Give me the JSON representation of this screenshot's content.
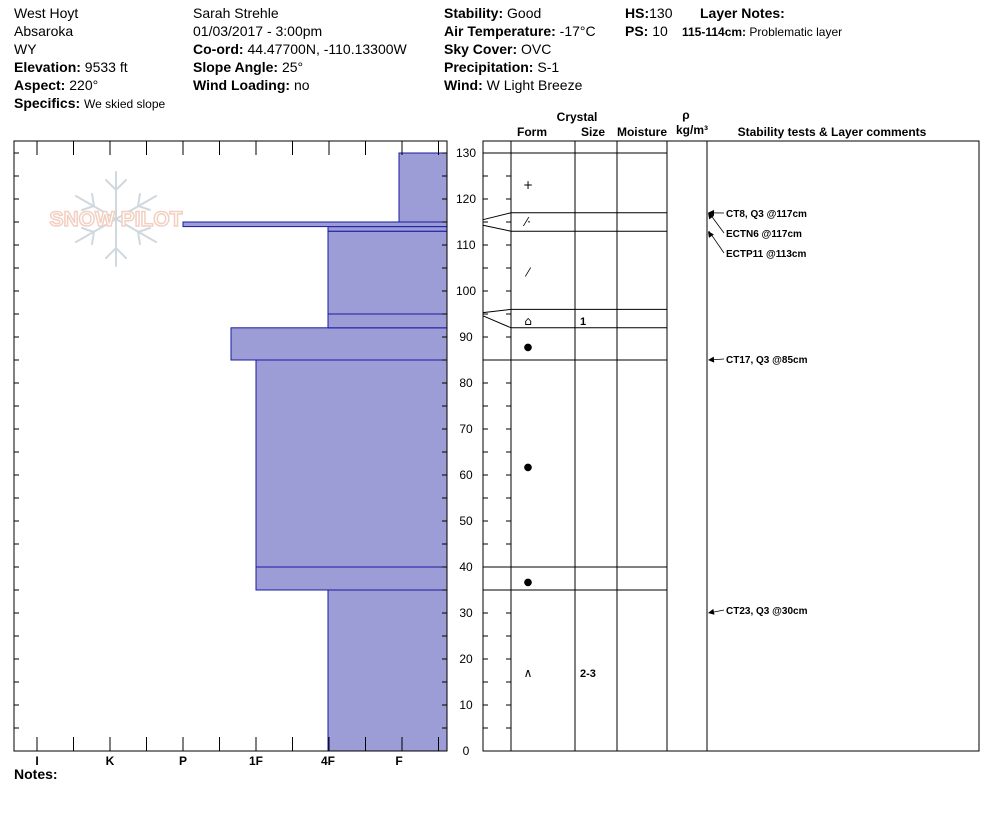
{
  "header": {
    "location": "West Hoyt",
    "range": "Absaroka",
    "state": "WY",
    "elevation_label": "Elevation:",
    "elevation": "9533 ft",
    "aspect_label": "Aspect:",
    "aspect": "220°",
    "specifics_label": "Specifics:",
    "specifics": "We skied slope",
    "observer": "Sarah Strehle",
    "datetime": "01/03/2017 - 3:00pm",
    "coord_label": "Co-ord:",
    "coord": "44.47700N, -110.13300W",
    "slope_label": "Slope Angle:",
    "slope": "25°",
    "wind_loading_label": "Wind Loading:",
    "wind_loading": "no",
    "stability_label": "Stability:",
    "stability": "Good",
    "air_temp_label": "Air Temperature:",
    "air_temp": "-17°C",
    "sky_label": "Sky Cover:",
    "sky": "OVC",
    "precip_label": "Precipitation:",
    "precip": "S-1",
    "wind_label": "Wind:",
    "wind": "W Light Breeze",
    "hs_label": "HS:",
    "hs": "130",
    "ps_label": "PS:",
    "ps": "10",
    "layer_notes_label": "Layer Notes:",
    "layer_note_range": "115-114cm:",
    "layer_note_text": "Problematic layer"
  },
  "logo_text": "SNOW PILOT",
  "notes_label": "Notes:",
  "colors": {
    "layer_fill": "#9c9cd6",
    "layer_stroke": "#1a1aa0"
  },
  "chart_data": {
    "type": "bar",
    "orientation": "horizontal-step",
    "y_axis": {
      "label": "",
      "min": 0,
      "max": 130,
      "ticks": [
        0,
        10,
        20,
        30,
        40,
        50,
        60,
        70,
        80,
        90,
        100,
        110,
        120,
        130
      ]
    },
    "x_axis": {
      "categories": [
        "I",
        "K",
        "P",
        "1F",
        "4F",
        "F"
      ],
      "label": ""
    },
    "hardness_profile": [
      {
        "bottom": 0,
        "top": 35,
        "hardness": "4F"
      },
      {
        "bottom": 35,
        "top": 40,
        "hardness": "1F"
      },
      {
        "bottom": 40,
        "top": 85,
        "hardness": "1F"
      },
      {
        "bottom": 85,
        "top": 92,
        "hardness": "1F-"
      },
      {
        "bottom": 92,
        "top": 95,
        "hardness": "4F"
      },
      {
        "bottom": 95,
        "top": 113,
        "hardness": "4F"
      },
      {
        "bottom": 113,
        "top": 114,
        "hardness": "4F"
      },
      {
        "bottom": 114,
        "top": 115,
        "hardness": "P"
      },
      {
        "bottom": 115,
        "top": 130,
        "hardness": "F"
      }
    ],
    "table_headers": {
      "crystal": "Crystal",
      "form": "Form",
      "size": "Size",
      "moisture": "Moisture",
      "rho": "ρ",
      "density_unit": "kg/m³",
      "stability_comments": "Stability tests & Layer comments"
    },
    "layer_boundaries": [
      130,
      117,
      113,
      96,
      92,
      85,
      40,
      35,
      0
    ],
    "layer_rows": [
      {
        "mid": 123,
        "form": "+",
        "size": ""
      },
      {
        "mid": 115,
        "form": "⁄·",
        "size": ""
      },
      {
        "mid": 104,
        "form": "⁄",
        "size": ""
      },
      {
        "mid": 93.5,
        "form": "⌂",
        "size": "1"
      },
      {
        "mid": 88,
        "form": "●",
        "size": ""
      },
      {
        "mid": 62,
        "form": "●",
        "size": ""
      },
      {
        "mid": 37,
        "form": "●",
        "size": ""
      },
      {
        "mid": 17,
        "form": "∧",
        "size": "2-3"
      }
    ],
    "stability_tests": [
      {
        "depth": 117,
        "text": "CT8, Q3 @117cm"
      },
      {
        "depth": 117,
        "text": "ECTN6 @117cm"
      },
      {
        "depth": 113,
        "text": "ECTP11 @113cm"
      },
      {
        "depth": 85,
        "text": "CT17, Q3 @85cm"
      },
      {
        "depth": 30,
        "text": "CT23, Q3 @30cm"
      }
    ]
  }
}
